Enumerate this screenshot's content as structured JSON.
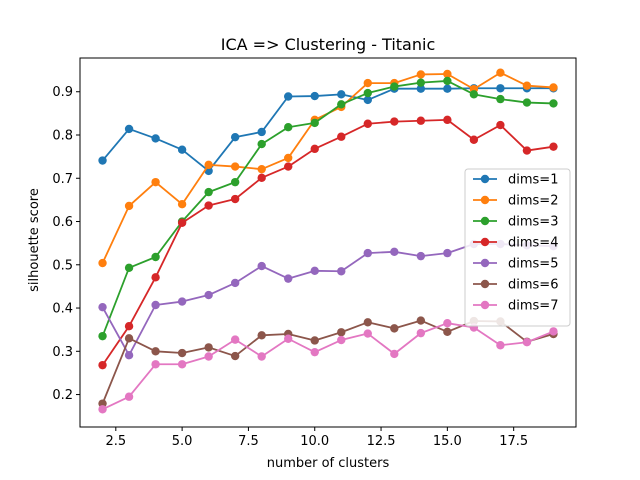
{
  "chart_data": {
    "type": "line",
    "title": "ICA => Clustering - Titanic",
    "xlabel": "number of clusters",
    "ylabel": "silhouette score",
    "xlim": [
      1.15,
      19.85
    ],
    "ylim": [
      0.125,
      0.978
    ],
    "xticks": [
      2.5,
      5.0,
      7.5,
      10.0,
      12.5,
      15.0,
      17.5
    ],
    "xtick_labels": [
      "2.5",
      "5.0",
      "7.5",
      "10.0",
      "12.5",
      "15.0",
      "17.5"
    ],
    "yticks": [
      0.2,
      0.3,
      0.4,
      0.5,
      0.6,
      0.7,
      0.8,
      0.9
    ],
    "ytick_labels": [
      "0.2",
      "0.3",
      "0.4",
      "0.5",
      "0.6",
      "0.7",
      "0.8",
      "0.9"
    ],
    "grid": false,
    "legend_position": "center-right",
    "x": [
      2,
      3,
      4,
      5,
      6,
      7,
      8,
      9,
      10,
      11,
      12,
      13,
      14,
      15,
      16,
      17,
      18,
      19
    ],
    "series": [
      {
        "name": "dims=1",
        "color": "#1f77b4",
        "values": [
          0.741,
          0.814,
          0.792,
          0.766,
          0.717,
          0.795,
          0.807,
          0.889,
          0.89,
          0.894,
          0.881,
          0.907,
          0.907,
          0.907,
          0.908,
          0.908,
          0.908,
          0.908
        ]
      },
      {
        "name": "dims=2",
        "color": "#ff7f0e",
        "values": [
          0.504,
          0.636,
          0.691,
          0.64,
          0.731,
          0.727,
          0.721,
          0.747,
          0.835,
          0.865,
          0.92,
          0.92,
          0.94,
          0.941,
          0.906,
          0.944,
          0.914,
          0.91
        ]
      },
      {
        "name": "dims=3",
        "color": "#2ca02c",
        "values": [
          0.335,
          0.493,
          0.518,
          0.6,
          0.668,
          0.691,
          0.779,
          0.818,
          0.828,
          0.871,
          0.897,
          0.912,
          0.921,
          0.925,
          0.894,
          0.883,
          0.875,
          0.873
        ]
      },
      {
        "name": "dims=4",
        "color": "#d62728",
        "values": [
          0.268,
          0.358,
          0.471,
          0.597,
          0.637,
          0.652,
          0.701,
          0.727,
          0.768,
          0.796,
          0.826,
          0.831,
          0.833,
          0.835,
          0.789,
          0.823,
          0.764,
          0.773
        ]
      },
      {
        "name": "dims=5",
        "color": "#9467bd",
        "values": [
          0.402,
          0.291,
          0.407,
          0.415,
          0.43,
          0.458,
          0.497,
          0.468,
          0.486,
          0.485,
          0.527,
          0.53,
          0.52,
          0.527,
          0.548,
          0.548,
          0.545,
          0.543
        ]
      },
      {
        "name": "dims=6",
        "color": "#8c564b",
        "values": [
          0.179,
          0.33,
          0.3,
          0.296,
          0.309,
          0.289,
          0.337,
          0.34,
          0.325,
          0.344,
          0.367,
          0.353,
          0.371,
          0.345,
          0.37,
          0.369,
          0.322,
          0.34
        ]
      },
      {
        "name": "dims=7",
        "color": "#e377c2",
        "values": [
          0.166,
          0.195,
          0.27,
          0.27,
          0.288,
          0.327,
          0.288,
          0.329,
          0.298,
          0.326,
          0.341,
          0.294,
          0.342,
          0.365,
          0.355,
          0.314,
          0.321,
          0.346
        ]
      }
    ]
  }
}
